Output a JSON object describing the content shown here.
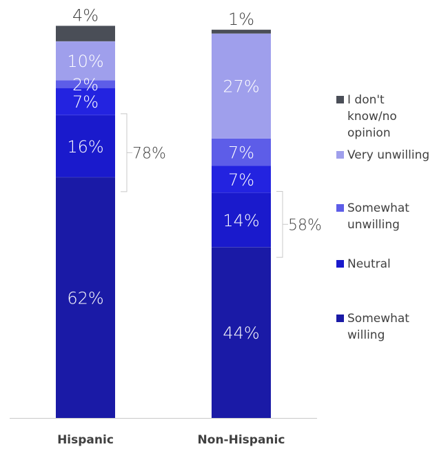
{
  "chart_data": {
    "type": "bar",
    "stacked": true,
    "categories": [
      "Hispanic",
      "Non-Hispanic"
    ],
    "ylim": [
      0,
      100
    ],
    "series": [
      {
        "name": "Somewhat willing",
        "color": "#1a1aa6",
        "values": [
          62,
          44
        ],
        "labels": [
          "62%",
          "44%"
        ]
      },
      {
        "name": "Neutral",
        "color": "#1a1acc",
        "values": [
          16,
          14
        ],
        "labels": [
          "16%",
          "14%"
        ]
      },
      {
        "name": "",
        "color": "#2323e0",
        "values": [
          7,
          7
        ],
        "labels": [
          "7%",
          "7%"
        ]
      },
      {
        "name": "Somewhat unwilling",
        "color": "#5d5de8",
        "values": [
          2,
          7
        ],
        "labels": [
          "2%",
          "7%"
        ]
      },
      {
        "name": "Very unwilling",
        "color": "#9f9fec",
        "values": [
          10,
          27
        ],
        "labels": [
          "10%",
          "27%"
        ]
      },
      {
        "name": "I don't know/no opinion",
        "color": "#4a4e57",
        "values": [
          4,
          1
        ],
        "labels": [
          "4%",
          "1%"
        ]
      }
    ],
    "brackets": [
      {
        "label": "78%",
        "category": "Hispanic"
      },
      {
        "label": "58%",
        "category": "Non-Hispanic"
      }
    ],
    "legend": [
      {
        "lines": [
          "I don't",
          "know/no",
          "opinion"
        ],
        "color": "#4a4e57"
      },
      {
        "lines": [
          "Very unwilling"
        ],
        "color": "#9f9fec"
      },
      {
        "lines": [
          "Somewhat",
          "unwilling"
        ],
        "color": "#5d5de8"
      },
      {
        "lines": [
          "Neutral"
        ],
        "color": "#1a1acc"
      },
      {
        "lines": [
          "Somewhat",
          "willing"
        ],
        "color": "#1a1aa6"
      }
    ]
  }
}
